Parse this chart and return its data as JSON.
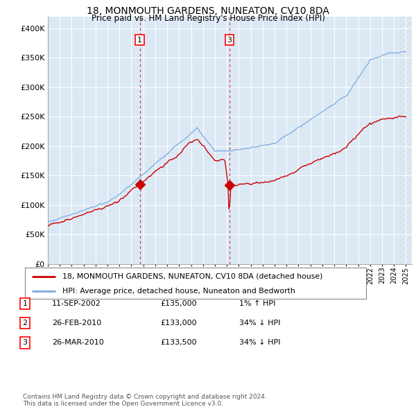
{
  "title": "18, MONMOUTH GARDENS, NUNEATON, CV10 8DA",
  "subtitle": "Price paid vs. HM Land Registry's House Price Index (HPI)",
  "hpi_color": "#7aaadd",
  "price_color": "#cc0000",
  "background_color": "#dce9f5",
  "plot_bg_color": "#dce9f5",
  "vline1_x": 2002.7,
  "vline3_x": 2010.23,
  "marker1_x": 2002.7,
  "marker1_y": 135000,
  "marker2_x": 2010.13,
  "marker2_y": 133000,
  "marker3_x": 2010.23,
  "marker3_y": 133500,
  "ylim_min": 0,
  "ylim_max": 420000,
  "legend_price_label": "18, MONMOUTH GARDENS, NUNEATON, CV10 8DA (detached house)",
  "legend_hpi_label": "HPI: Average price, detached house, Nuneaton and Bedworth",
  "table_rows": [
    [
      "1",
      "11-SEP-2002",
      "£135,000",
      "1% ↑ HPI"
    ],
    [
      "2",
      "26-FEB-2010",
      "£133,000",
      "34% ↓ HPI"
    ],
    [
      "3",
      "26-MAR-2010",
      "£133,500",
      "34% ↓ HPI"
    ]
  ],
  "footer": "Contains HM Land Registry data © Crown copyright and database right 2024.\nThis data is licensed under the Open Government Licence v3.0.",
  "yticks": [
    0,
    50000,
    100000,
    150000,
    200000,
    250000,
    300000,
    350000,
    400000
  ],
  "ytick_labels": [
    "£0",
    "£50K",
    "£100K",
    "£150K",
    "£200K",
    "£250K",
    "£300K",
    "£350K",
    "£400K"
  ],
  "xlim_min": 1995,
  "xlim_max": 2025.5
}
